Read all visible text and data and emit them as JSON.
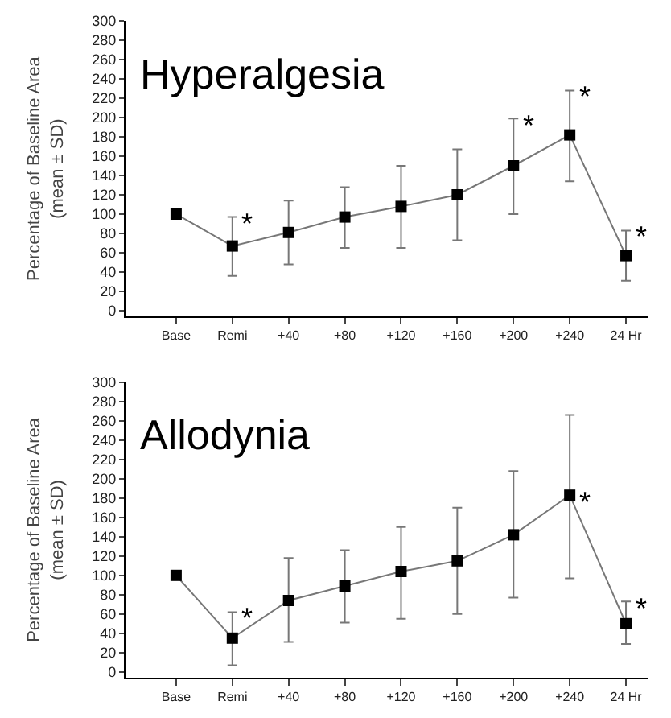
{
  "chart_data": [
    {
      "type": "line",
      "title": "Hyperalgesia",
      "ylabel": "Percentage of Baseline Area\n(mean ± SD)",
      "categories": [
        "Base",
        "Remi",
        "+40",
        "+80",
        "+120",
        "+160",
        "+200",
        "+240",
        "24 Hr"
      ],
      "series": [
        {
          "color": "#000000",
          "values": [
            100,
            67,
            81,
            97,
            108,
            120,
            150,
            182,
            57
          ],
          "errors": [
            null,
            [
              36,
              97
            ],
            [
              48,
              114
            ],
            [
              65,
              128
            ],
            [
              65,
              150
            ],
            [
              73,
              167
            ],
            [
              100,
              199
            ],
            [
              134,
              228
            ],
            [
              31,
              83
            ]
          ]
        }
      ],
      "ylim": [
        -6,
        300
      ],
      "yticks": [
        0,
        20,
        40,
        60,
        80,
        100,
        120,
        140,
        160,
        180,
        200,
        220,
        240,
        260,
        280,
        300
      ],
      "marker": "square",
      "line_style": "solid",
      "annotations": [
        {
          "text": "*",
          "x": "Remi",
          "y": 97
        },
        {
          "text": "*",
          "x": "+200",
          "y": 199
        },
        {
          "text": "*",
          "x": "+240",
          "y": 228
        },
        {
          "text": "*",
          "x": "24 Hr",
          "y": 83
        }
      ]
    },
    {
      "type": "line",
      "title": "Allodynia",
      "ylabel": "Percentage of Baseline Area\n(mean ± SD)",
      "categories": [
        "Base",
        "Remi",
        "+40",
        "+80",
        "+120",
        "+160",
        "+200",
        "+240",
        "24 Hr"
      ],
      "series": [
        {
          "color": "#000000",
          "values": [
            100,
            35,
            74,
            89,
            104,
            115,
            142,
            183,
            50
          ],
          "errors": [
            null,
            [
              7,
              62
            ],
            [
              31,
              118
            ],
            [
              51,
              126
            ],
            [
              55,
              150
            ],
            [
              60,
              170
            ],
            [
              77,
              208
            ],
            [
              97,
              266
            ],
            [
              29,
              73
            ]
          ]
        }
      ],
      "ylim": [
        -6,
        300
      ],
      "yticks": [
        0,
        20,
        40,
        60,
        80,
        100,
        120,
        140,
        160,
        180,
        200,
        220,
        240,
        260,
        280,
        300
      ],
      "marker": "square",
      "line_style": "solid",
      "annotations": [
        {
          "text": "*",
          "x": "Remi",
          "y": 62
        },
        {
          "text": "*",
          "x": "+240",
          "y": 183
        },
        {
          "text": "*",
          "x": "24 Hr",
          "y": 73
        }
      ]
    }
  ]
}
